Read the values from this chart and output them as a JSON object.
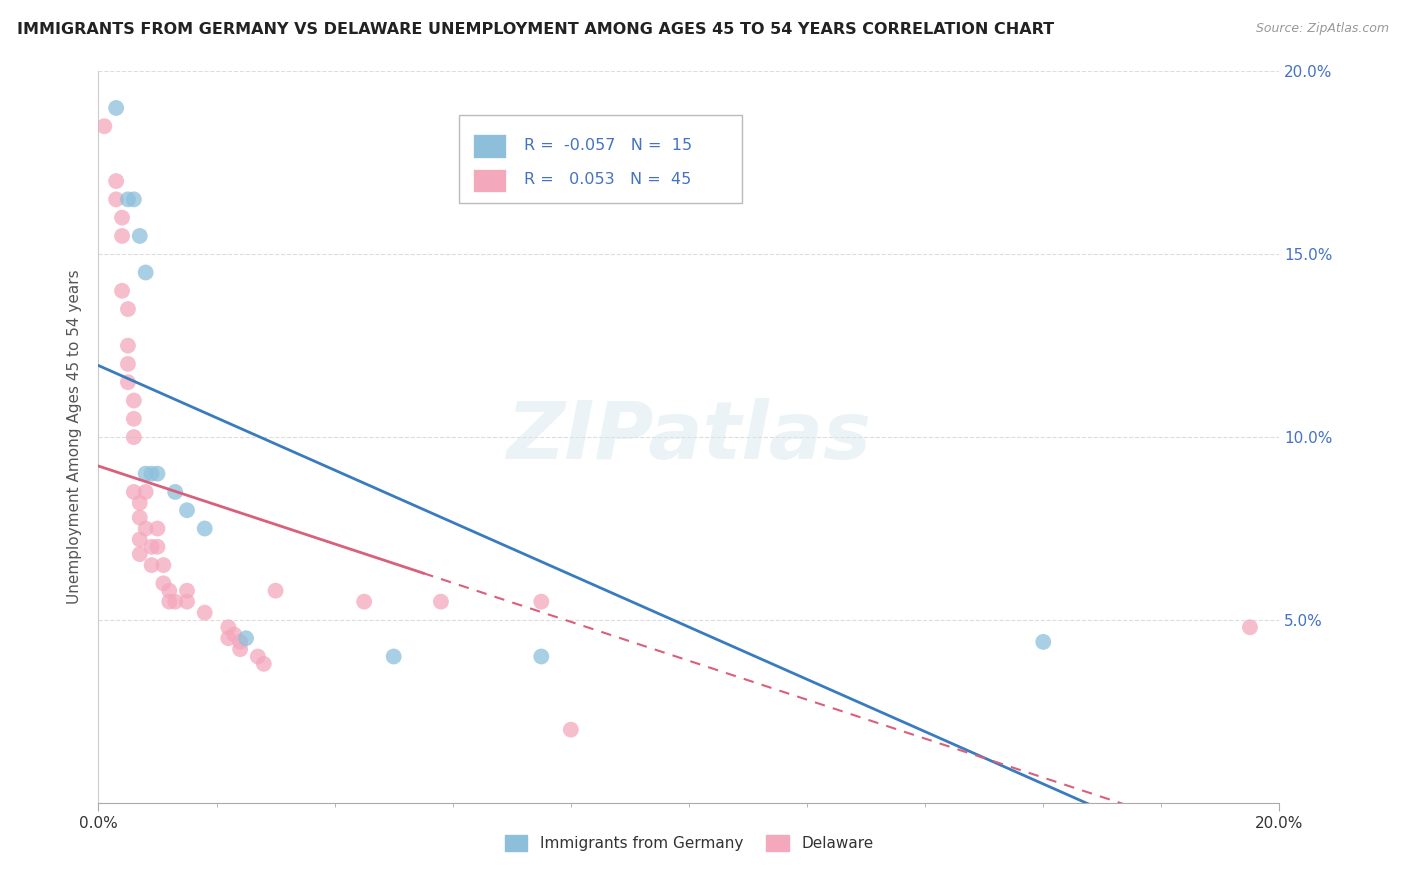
{
  "title": "IMMIGRANTS FROM GERMANY VS DELAWARE UNEMPLOYMENT AMONG AGES 45 TO 54 YEARS CORRELATION CHART",
  "source": "Source: ZipAtlas.com",
  "ylabel": "Unemployment Among Ages 45 to 54 years",
  "xlim": [
    0.0,
    0.2
  ],
  "ylim": [
    0.0,
    0.2
  ],
  "yticks": [
    0.0,
    0.05,
    0.1,
    0.15,
    0.2
  ],
  "ytick_labels_right": [
    "",
    "5.0%",
    "10.0%",
    "15.0%",
    "20.0%"
  ],
  "blue_R": "-0.057",
  "blue_N": "15",
  "pink_R": "0.053",
  "pink_N": "45",
  "blue_color": "#8dbfdb",
  "pink_color": "#f4a8bc",
  "blue_line_color": "#3a7bbf",
  "pink_line_color": "#d9607a",
  "tick_color": "#aaaaaa",
  "label_color": "#4472c4",
  "grid_color": "#dddddd",
  "watermark": "ZIPatlas",
  "blue_points": [
    [
      0.003,
      0.19
    ],
    [
      0.005,
      0.165
    ],
    [
      0.006,
      0.165
    ],
    [
      0.007,
      0.155
    ],
    [
      0.008,
      0.145
    ],
    [
      0.008,
      0.09
    ],
    [
      0.009,
      0.09
    ],
    [
      0.01,
      0.09
    ],
    [
      0.013,
      0.085
    ],
    [
      0.015,
      0.08
    ],
    [
      0.018,
      0.075
    ],
    [
      0.025,
      0.045
    ],
    [
      0.05,
      0.04
    ],
    [
      0.075,
      0.04
    ],
    [
      0.16,
      0.044
    ]
  ],
  "pink_points": [
    [
      0.001,
      0.185
    ],
    [
      0.003,
      0.17
    ],
    [
      0.003,
      0.165
    ],
    [
      0.004,
      0.16
    ],
    [
      0.004,
      0.155
    ],
    [
      0.004,
      0.14
    ],
    [
      0.005,
      0.135
    ],
    [
      0.005,
      0.125
    ],
    [
      0.005,
      0.12
    ],
    [
      0.005,
      0.115
    ],
    [
      0.006,
      0.11
    ],
    [
      0.006,
      0.105
    ],
    [
      0.006,
      0.1
    ],
    [
      0.006,
      0.085
    ],
    [
      0.007,
      0.082
    ],
    [
      0.007,
      0.078
    ],
    [
      0.007,
      0.072
    ],
    [
      0.007,
      0.068
    ],
    [
      0.008,
      0.085
    ],
    [
      0.008,
      0.075
    ],
    [
      0.009,
      0.07
    ],
    [
      0.009,
      0.065
    ],
    [
      0.01,
      0.075
    ],
    [
      0.01,
      0.07
    ],
    [
      0.011,
      0.065
    ],
    [
      0.011,
      0.06
    ],
    [
      0.012,
      0.058
    ],
    [
      0.012,
      0.055
    ],
    [
      0.013,
      0.055
    ],
    [
      0.015,
      0.058
    ],
    [
      0.015,
      0.055
    ],
    [
      0.018,
      0.052
    ],
    [
      0.022,
      0.048
    ],
    [
      0.022,
      0.045
    ],
    [
      0.023,
      0.046
    ],
    [
      0.024,
      0.044
    ],
    [
      0.024,
      0.042
    ],
    [
      0.027,
      0.04
    ],
    [
      0.028,
      0.038
    ],
    [
      0.03,
      0.058
    ],
    [
      0.045,
      0.055
    ],
    [
      0.058,
      0.055
    ],
    [
      0.075,
      0.055
    ],
    [
      0.08,
      0.02
    ],
    [
      0.195,
      0.048
    ]
  ]
}
